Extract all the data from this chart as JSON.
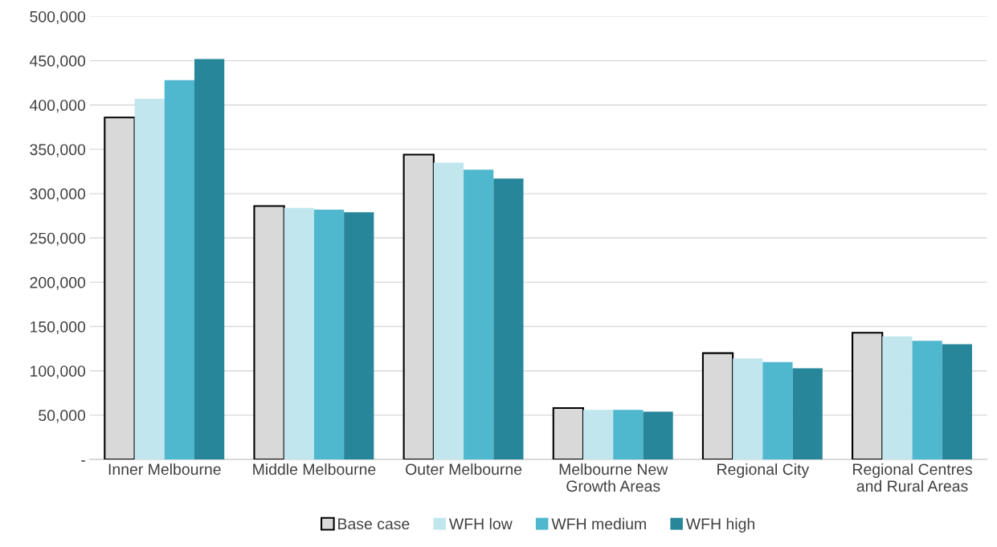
{
  "chart_data": {
    "type": "bar",
    "categories": [
      "Inner Melbourne",
      "Middle Melbourne",
      "Outer Melbourne",
      "Melbourne New\nGrowth Areas",
      "Regional City",
      "Regional Centres\nand Rural Areas"
    ],
    "series": [
      {
        "name": "Base case",
        "color": "#d9d9d9",
        "values": [
          386000,
          286000,
          344000,
          58000,
          120000,
          143000
        ]
      },
      {
        "name": "WFH low",
        "color": "#c2e6ee",
        "values": [
          407000,
          284000,
          335000,
          56000,
          114000,
          139000
        ]
      },
      {
        "name": "WFH medium",
        "color": "#4fb8cf",
        "values": [
          428000,
          282000,
          327000,
          56000,
          110000,
          134000
        ]
      },
      {
        "name": "WFH high",
        "color": "#28869a",
        "values": [
          452000,
          279000,
          317000,
          54000,
          103000,
          130000
        ]
      }
    ],
    "ylim": [
      0,
      500000
    ],
    "yticks": [
      {
        "value": 0,
        "label": "-"
      },
      {
        "value": 50000,
        "label": "50,000"
      },
      {
        "value": 100000,
        "label": "100,000"
      },
      {
        "value": 150000,
        "label": "150,000"
      },
      {
        "value": 200000,
        "label": "200,000"
      },
      {
        "value": 250000,
        "label": "250,000"
      },
      {
        "value": 300000,
        "label": "300,000"
      },
      {
        "value": 350000,
        "label": "350,000"
      },
      {
        "value": 400000,
        "label": "400,000"
      },
      {
        "value": 450000,
        "label": "450,000"
      },
      {
        "value": 500000,
        "label": "500,000"
      }
    ],
    "grid": "y",
    "legend": "bottom"
  }
}
